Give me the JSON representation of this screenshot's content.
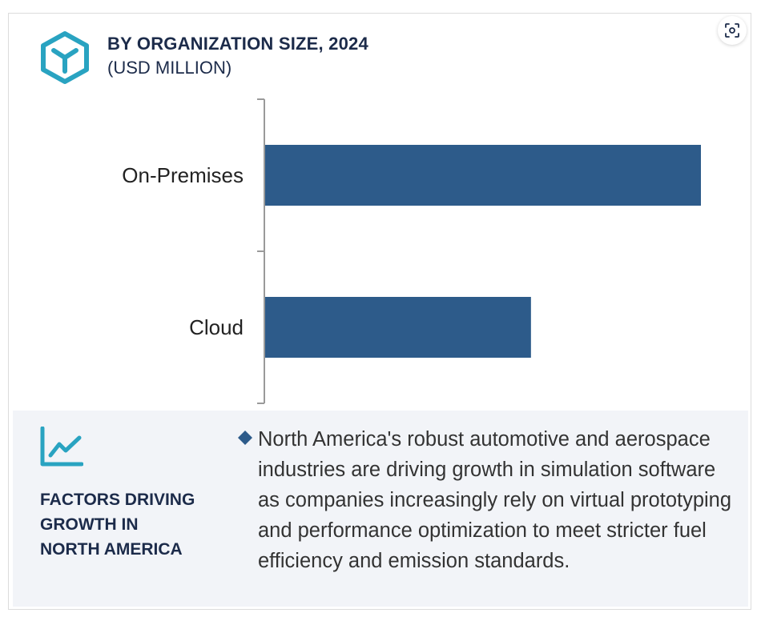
{
  "header": {
    "title": "BY ORGANIZATION SIZE, 2024",
    "subtitle": "(USD MILLION)",
    "logo_icon": "hexagon-y-logo-icon",
    "expand_icon": "expand-scan-icon"
  },
  "colors": {
    "bar": "#2d5b8a",
    "logo": "#29a3c1",
    "title": "#1c2b4a",
    "panel_bg": "#f2f4f8"
  },
  "chart_data": {
    "type": "bar",
    "orientation": "horizontal",
    "categories": [
      "On-Premises",
      "Cloud"
    ],
    "values": [
      100,
      61
    ],
    "title": "BY ORGANIZATION SIZE, 2024",
    "subtitle": "(USD MILLION)",
    "xlim": [
      0,
      100
    ],
    "grid": false,
    "legend": "none"
  },
  "factors": {
    "icon": "trend-chart-icon",
    "bullet_icon": "diamond-bullet-icon",
    "title": "FACTORS DRIVING\nGROWTH IN\nNORTH AMERICA",
    "text": "North America's robust automotive and aerospace industries are driving growth in simulation software as companies increasingly rely on virtual prototyping and performance optimization to meet stricter fuel efficiency and emission standards."
  }
}
